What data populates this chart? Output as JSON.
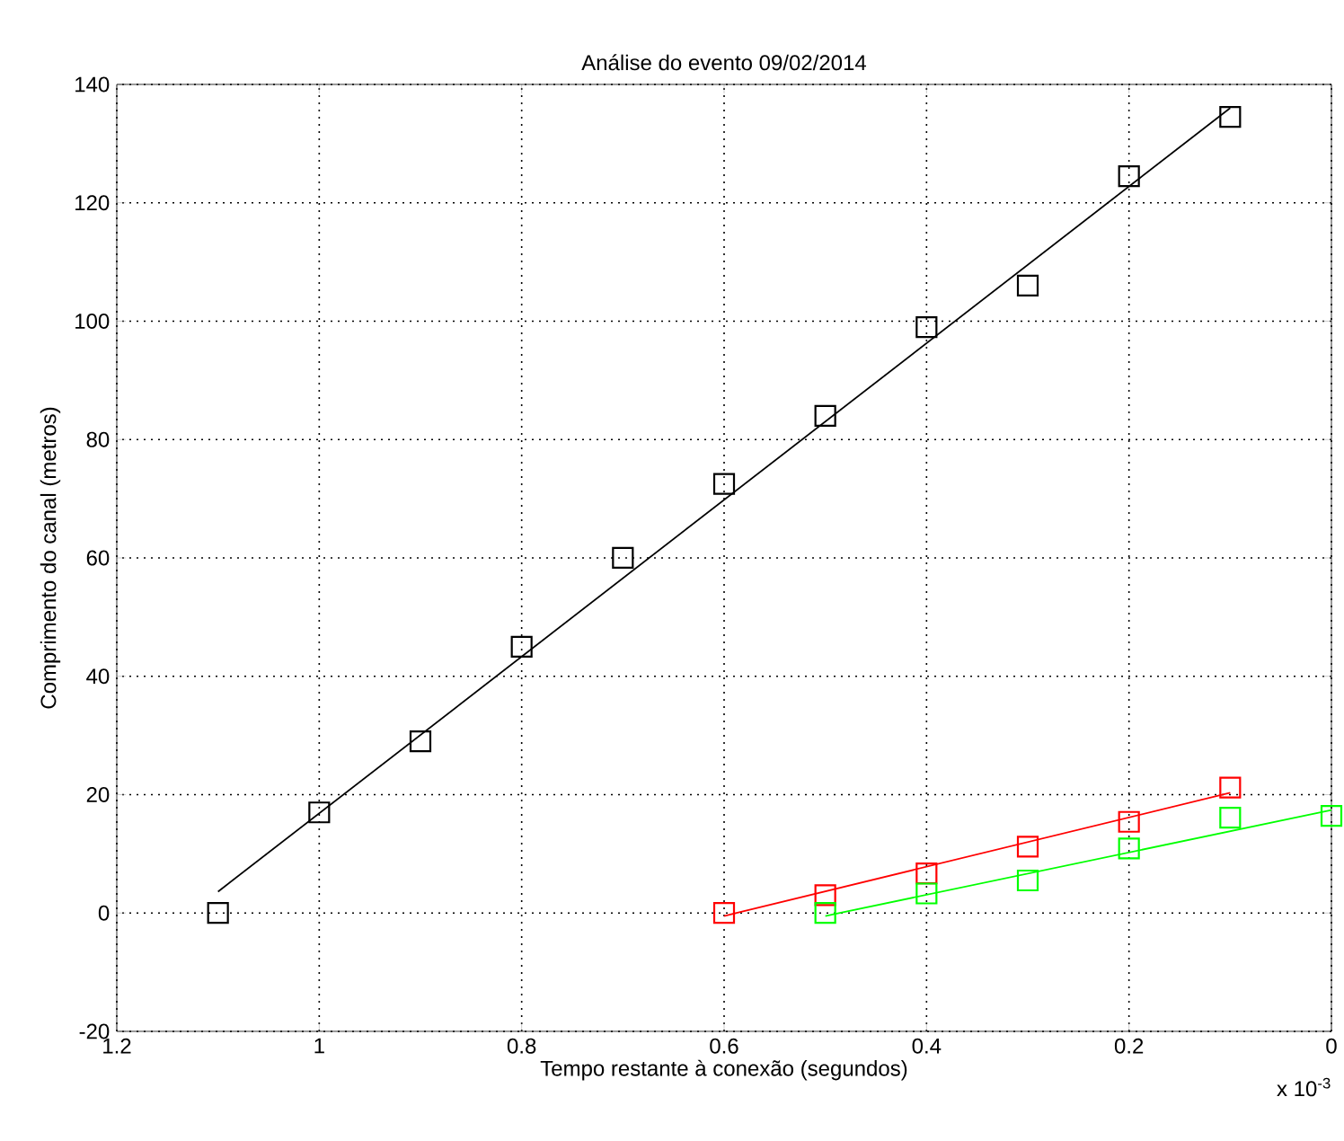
{
  "chart_data": {
    "type": "scatter",
    "title": "Análise do evento 09/02/2014",
    "xlabel": "Tempo restante à conexão (segundos)",
    "ylabel": "Comprimento do canal (metros)",
    "annotations": [
      "x 10$^{-3}$"
    ],
    "xlim": [
      1.2,
      0
    ],
    "ylim": [
      -20,
      140
    ],
    "xticks": [
      1.2,
      1,
      0.8,
      0.6,
      0.4,
      0.2,
      0
    ],
    "yticks": [
      -20,
      0,
      20,
      40,
      60,
      80,
      100,
      120,
      140
    ],
    "grid": true,
    "marker": "square",
    "series": [
      {
        "color": "#000000",
        "x": [
          1.1,
          1.0,
          0.9,
          0.8,
          0.7,
          0.6,
          0.5,
          0.4,
          0.3,
          0.2,
          0.1
        ],
        "values": [
          0,
          17,
          29,
          45,
          60,
          72.5,
          84,
          99,
          106,
          124.5,
          134.5
        ]
      },
      {
        "type": "line",
        "marker": "none",
        "color": "#000000",
        "x": [
          1.1,
          0.1
        ],
        "values": [
          3.6,
          136
        ]
      },
      {
        "color": "#ff0000",
        "x": [
          0.6,
          0.5,
          0.4,
          0.3,
          0.2,
          0.1
        ],
        "values": [
          0,
          3,
          6.7,
          11.2,
          15.4,
          21.2
        ]
      },
      {
        "type": "line",
        "marker": "none",
        "color": "#ff0000",
        "x": [
          0.6,
          0.1
        ],
        "values": [
          -0.5,
          20.3
        ]
      },
      {
        "color": "#00ff00",
        "x": [
          0.5,
          0.4,
          0.3,
          0.2,
          0.1,
          0
        ],
        "values": [
          0,
          3.3,
          5.5,
          10.9,
          16.1,
          16.4
        ]
      },
      {
        "type": "line",
        "marker": "none",
        "color": "#00ff00",
        "x": [
          0.5,
          0
        ],
        "values": [
          -0.5,
          17.4
        ]
      }
    ]
  }
}
